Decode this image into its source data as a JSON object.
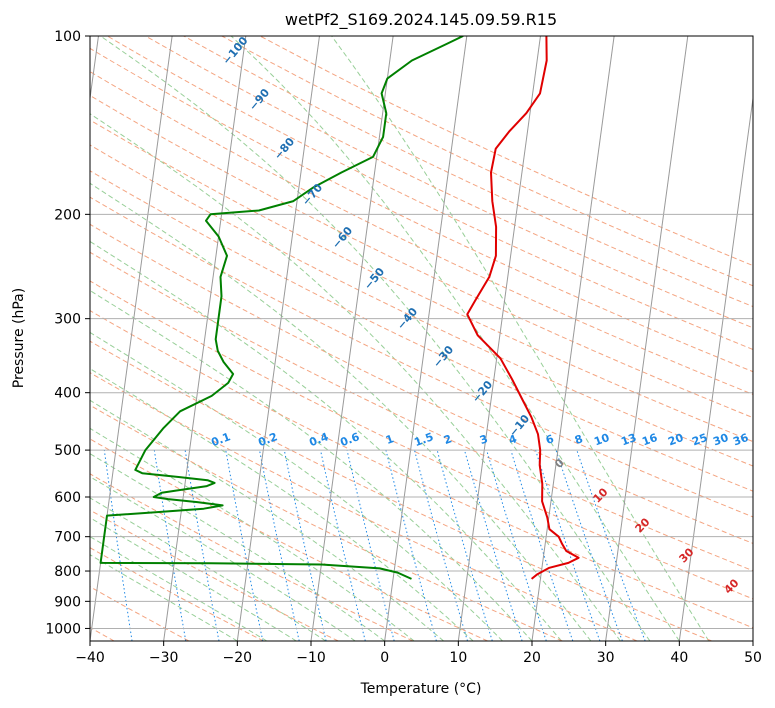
{
  "chart_data": {
    "type": "line",
    "title": "wetPf2_S169.2024.145.09.59.R15",
    "xlabel": "Temperature (°C)",
    "ylabel": "Pressure (hPa)",
    "xlim": [
      -40,
      50
    ],
    "ylim": [
      1050,
      100
    ],
    "y_scale": "log",
    "x_ticks": [
      -40,
      -30,
      -20,
      -10,
      0,
      10,
      20,
      30,
      40,
      50
    ],
    "x_tick_labels": [
      "−40",
      "−30",
      "−20",
      "−10",
      "0",
      "10",
      "20",
      "30",
      "40",
      "50"
    ],
    "y_ticks": [
      100,
      200,
      300,
      400,
      500,
      600,
      700,
      800,
      900,
      1000
    ],
    "y_tick_labels": [
      "100",
      "200",
      "300",
      "400",
      "500",
      "600",
      "700",
      "800",
      "900",
      "1000"
    ],
    "grid": true,
    "colors": {
      "temperature": "#e00000",
      "dewpoint": "#008000",
      "isotherm": "#9a9a9a",
      "dry_adiabat": "#f4a582",
      "moist_adiabat": "#98cf98",
      "mixing_ratio": "#1e88e5",
      "label_blue": "#1f6fb2",
      "label_red": "#d62728"
    },
    "series": [
      {
        "role": "temperature",
        "points": [
          [
            10.8,
            100
          ],
          [
            11.3,
            110
          ],
          [
            11.0,
            125
          ],
          [
            9.5,
            135
          ],
          [
            7.5,
            145
          ],
          [
            6.0,
            155
          ],
          [
            5.8,
            170
          ],
          [
            6.5,
            190
          ],
          [
            7.5,
            210
          ],
          [
            8.0,
            235
          ],
          [
            7.5,
            255
          ],
          [
            6.0,
            280
          ],
          [
            5.2,
            295
          ],
          [
            7.0,
            320
          ],
          [
            10.5,
            350
          ],
          [
            12.5,
            380
          ],
          [
            14.2,
            410
          ],
          [
            15.8,
            440
          ],
          [
            17.0,
            470
          ],
          [
            17.6,
            500
          ],
          [
            17.8,
            530
          ],
          [
            18.5,
            570
          ],
          [
            18.8,
            610
          ],
          [
            19.8,
            650
          ],
          [
            20.3,
            680
          ],
          [
            21.7,
            700
          ],
          [
            22.3,
            720
          ],
          [
            23.0,
            740
          ],
          [
            24.8,
            760
          ],
          [
            23.5,
            775
          ],
          [
            21.0,
            790
          ],
          [
            19.5,
            810
          ],
          [
            18.8,
            825
          ]
        ]
      },
      {
        "role": "dewpoint",
        "points": [
          [
            -0.5,
            100
          ],
          [
            -2.5,
            103
          ],
          [
            -7.0,
            110
          ],
          [
            -10.0,
            118
          ],
          [
            -10.5,
            125
          ],
          [
            -9.5,
            135
          ],
          [
            -9.5,
            148
          ],
          [
            -10.5,
            160
          ],
          [
            -14.5,
            170
          ],
          [
            -18.0,
            180
          ],
          [
            -20.5,
            190
          ],
          [
            -25.0,
            197
          ],
          [
            -31.5,
            200
          ],
          [
            -32.0,
            205
          ],
          [
            -30.0,
            218
          ],
          [
            -28.5,
            235
          ],
          [
            -29.0,
            255
          ],
          [
            -28.5,
            275
          ],
          [
            -28.5,
            305
          ],
          [
            -28.5,
            325
          ],
          [
            -28.0,
            340
          ],
          [
            -27.0,
            355
          ],
          [
            -25.5,
            372
          ],
          [
            -26.0,
            385
          ],
          [
            -28.0,
            405
          ],
          [
            -32.0,
            430
          ],
          [
            -34.0,
            460
          ],
          [
            -36.0,
            500
          ],
          [
            -37.0,
            540
          ],
          [
            -36.0,
            547
          ],
          [
            -31.0,
            555
          ],
          [
            -27.0,
            562
          ],
          [
            -26.0,
            568
          ],
          [
            -27.0,
            575
          ],
          [
            -31.0,
            585
          ],
          [
            -33.0,
            590
          ],
          [
            -34.0,
            600
          ],
          [
            -32.0,
            605
          ],
          [
            -28.0,
            612
          ],
          [
            -24.5,
            620
          ],
          [
            -27.0,
            628
          ],
          [
            -33.0,
            636
          ],
          [
            -40.0,
            645
          ],
          [
            -40.0,
            775
          ],
          [
            -25.0,
            776
          ],
          [
            -10.0,
            780
          ],
          [
            -2.0,
            792
          ],
          [
            0.5,
            805
          ],
          [
            2.5,
            825
          ]
        ]
      }
    ],
    "dry_adiabat_labels": [
      "−100",
      "−90",
      "−80",
      "−70",
      "−60",
      "−50",
      "−40",
      "−30",
      "−20",
      "−10"
    ],
    "moist_adiabat_labels": [
      "0",
      "10",
      "20",
      "30",
      "40"
    ],
    "mixing_ratio_labels": [
      "0.1",
      "0.2",
      "0.4",
      "0.6",
      "1",
      "1.5",
      "2",
      "3",
      "4",
      "6",
      "8",
      "10",
      "13",
      "16",
      "20",
      "25",
      "30",
      "36"
    ]
  }
}
